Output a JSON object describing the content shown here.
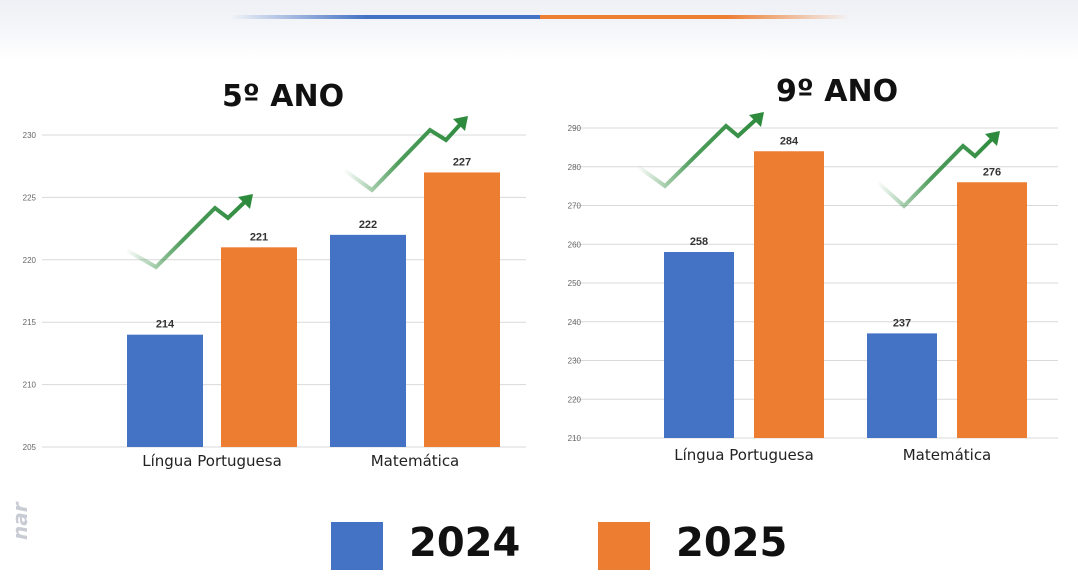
{
  "colors": {
    "y2024": "#4472c4",
    "y2025": "#ed7d31",
    "arrow": "#2e8b3e",
    "grid": "#d9d9d9"
  },
  "icons": {
    "trend": "trend-up-arrow-icon"
  },
  "chart_data": [
    {
      "type": "bar",
      "title": "5º ANO",
      "categories": [
        "Língua Portuguesa",
        "Matemática"
      ],
      "series": [
        {
          "name": "2024",
          "values": [
            214,
            222
          ]
        },
        {
          "name": "2025",
          "values": [
            221,
            227
          ]
        }
      ],
      "ylim": [
        205,
        230
      ],
      "yticks": [
        205,
        210,
        215,
        220,
        225,
        230
      ],
      "grid": true,
      "legend": "bottom"
    },
    {
      "type": "bar",
      "title": "9º ANO",
      "categories": [
        "Língua Portuguesa",
        "Matemática"
      ],
      "series": [
        {
          "name": "2024",
          "values": [
            258,
            237
          ]
        },
        {
          "name": "2025",
          "values": [
            284,
            276
          ]
        }
      ],
      "ylim": [
        210,
        290
      ],
      "yticks": [
        210,
        220,
        230,
        240,
        250,
        260,
        270,
        280,
        290
      ],
      "grid": true,
      "legend": "bottom"
    }
  ],
  "legend": {
    "items": [
      "2024",
      "2025"
    ]
  }
}
